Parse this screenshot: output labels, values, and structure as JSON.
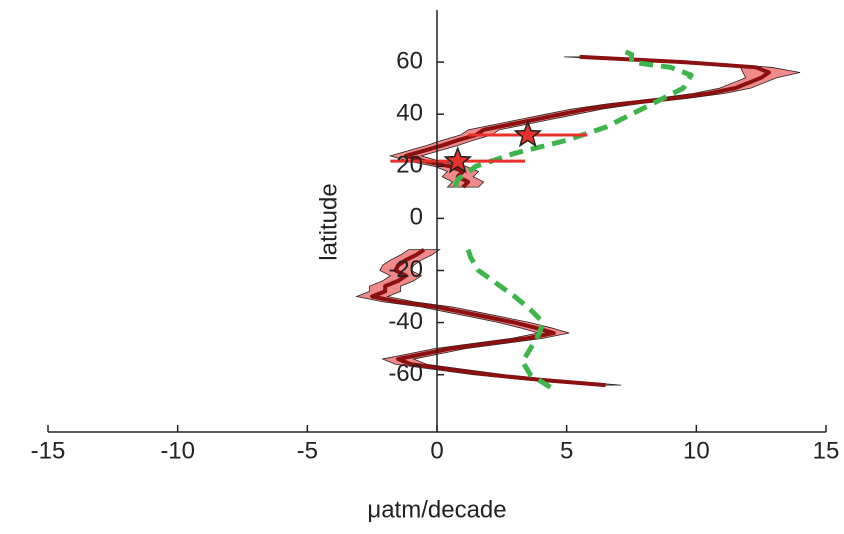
{
  "chart_data": {
    "type": "line",
    "xlabel": "μatm/decade",
    "ylabel": "latitude",
    "xlim": [
      -15,
      15
    ],
    "xticks": [
      -15,
      -10,
      -5,
      0,
      5,
      10,
      15
    ],
    "ylim": [
      -82,
      80
    ],
    "yticks": [
      -60,
      -40,
      -20,
      0,
      20,
      40,
      60
    ],
    "bands": [
      {
        "color": "#f08a8a",
        "latitude": [
          12,
          14,
          16,
          18,
          20,
          22,
          24,
          26,
          28,
          30,
          32,
          34,
          36,
          38,
          40,
          42,
          44,
          46,
          48,
          50,
          52,
          54,
          56,
          58,
          60,
          62
        ],
        "lower": [
          0.4,
          0.6,
          0.2,
          0.4,
          -0.1,
          -1.1,
          -1.8,
          -1.1,
          -0.4,
          0.2,
          0.9,
          1.2,
          2.2,
          3.2,
          4.2,
          5.2,
          6.6,
          8.4,
          9.9,
          10.9,
          11.4,
          11.9,
          11.8,
          11.7,
          8.9,
          4.9
        ],
        "upper": [
          1.6,
          1.8,
          1.4,
          1.6,
          1.1,
          0.1,
          -0.6,
          0.1,
          0.8,
          1.4,
          2.1,
          2.4,
          3.4,
          4.4,
          5.4,
          6.4,
          7.8,
          9.6,
          11.1,
          12.1,
          12.6,
          13.1,
          14.0,
          12.9,
          10.1,
          6.1
        ]
      },
      {
        "color": "#f08a8a",
        "latitude": [
          -12,
          -14,
          -16,
          -18,
          -20,
          -22,
          -24,
          -26,
          -28,
          -30,
          -32,
          -34,
          -36,
          -38,
          -40,
          -42,
          -44,
          -46,
          -48,
          -50,
          -52,
          -54,
          -56,
          -58,
          -60,
          -62,
          -64
        ],
        "lower": [
          -1.1,
          -1.4,
          -1.8,
          -2.1,
          -2.2,
          -1.8,
          -2.1,
          -2.6,
          -2.6,
          -3.1,
          -2.1,
          -0.6,
          0.4,
          1.4,
          2.4,
          3.2,
          3.9,
          2.9,
          1.4,
          -0.1,
          -1.1,
          -2.1,
          -1.6,
          -0.1,
          1.4,
          3.4,
          5.9
        ],
        "upper": [
          0.1,
          -0.2,
          -0.6,
          -0.9,
          -1.0,
          -0.6,
          -0.9,
          -1.4,
          -1.4,
          -1.9,
          -0.9,
          0.6,
          1.6,
          2.6,
          3.6,
          4.4,
          5.1,
          4.1,
          2.6,
          1.1,
          0.1,
          -0.9,
          -0.4,
          1.1,
          2.6,
          4.6,
          7.1
        ]
      }
    ],
    "series": [
      {
        "color": "#8b1010",
        "dashed": false,
        "latitude": [
          12,
          14,
          16,
          18,
          20,
          22,
          24,
          26,
          28,
          30,
          32,
          34,
          36,
          38,
          40,
          42,
          44,
          46,
          48,
          50,
          52,
          54,
          56,
          58,
          60,
          62
        ],
        "values": [
          1.0,
          1.2,
          0.8,
          1.0,
          0.5,
          -0.5,
          -1.2,
          -0.5,
          0.2,
          0.8,
          1.5,
          1.8,
          2.8,
          3.8,
          4.8,
          5.8,
          7.2,
          9.0,
          10.5,
          11.5,
          12.0,
          12.5,
          12.8,
          12.3,
          9.5,
          5.5
        ]
      },
      {
        "color": "#8b1010",
        "dashed": false,
        "latitude": [
          -12,
          -14,
          -16,
          -18,
          -20,
          -22,
          -24,
          -26,
          -28,
          -30,
          -32,
          -34,
          -36,
          -38,
          -40,
          -42,
          -44,
          -46,
          -48,
          -50,
          -52,
          -54,
          -56,
          -58,
          -60,
          -62,
          -64
        ],
        "values": [
          -0.5,
          -0.8,
          -1.2,
          -1.5,
          -1.6,
          -1.2,
          -1.5,
          -2.0,
          -2.0,
          -2.5,
          -1.5,
          0.0,
          1.0,
          2.0,
          3.0,
          3.8,
          4.5,
          3.5,
          2.0,
          0.5,
          -0.5,
          -1.5,
          -1.0,
          0.5,
          2.0,
          4.0,
          6.5
        ]
      },
      {
        "color": "#3db54a",
        "dashed": true,
        "latitude": [
          12,
          15,
          20,
          25,
          30,
          35,
          40,
          45,
          50,
          55,
          58,
          60,
          63,
          65
        ],
        "values": [
          0.7,
          0.8,
          1.5,
          3.0,
          5.0,
          6.5,
          7.5,
          8.5,
          9.5,
          9.8,
          9.0,
          7.5,
          7.5,
          7.0
        ]
      },
      {
        "color": "#3db54a",
        "dashed": true,
        "latitude": [
          -12,
          -15,
          -20,
          -25,
          -30,
          -35,
          -40,
          -45,
          -50,
          -55,
          -60,
          -65
        ],
        "values": [
          1.2,
          1.3,
          1.6,
          2.3,
          3.0,
          3.6,
          4.1,
          3.9,
          3.6,
          3.3,
          3.6,
          4.4
        ]
      }
    ],
    "points": {
      "color": "#e8312a",
      "latitude": [
        22,
        32
      ],
      "values": [
        0.8,
        3.5
      ],
      "error": [
        2.6,
        2.3
      ]
    }
  }
}
